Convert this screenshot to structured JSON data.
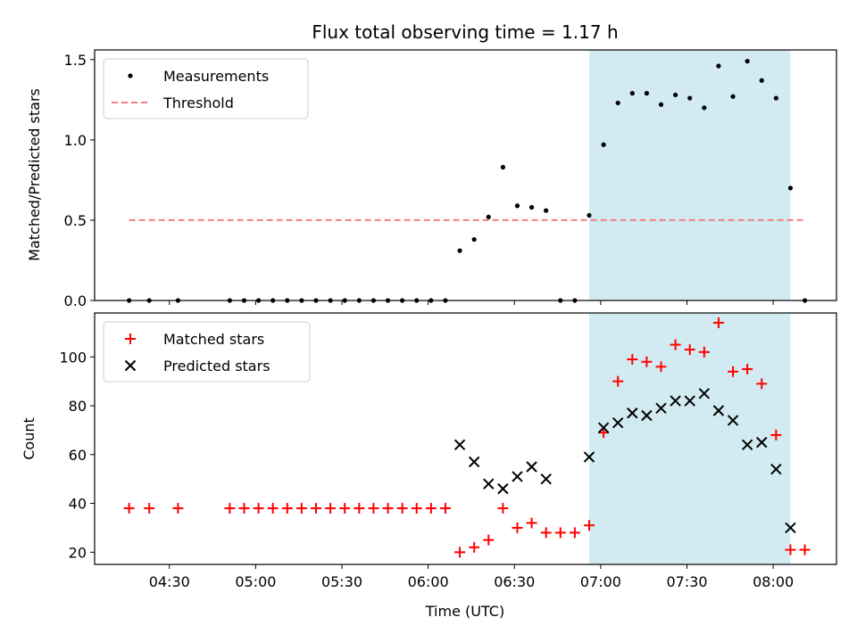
{
  "chart_data": {
    "type": "scatter",
    "title": "Flux total observing time = 1.17 h",
    "xlabel": "Time (UTC)",
    "x_ticks": [
      "04:30",
      "05:00",
      "05:30",
      "06:00",
      "06:30",
      "07:00",
      "07:30",
      "08:00"
    ],
    "highlight_span": {
      "from": "06:56",
      "to": "08:06",
      "color": "#add8e6"
    },
    "panels": [
      {
        "ylabel": "Matched/Predicted stars",
        "ylim": [
          0,
          1.56
        ],
        "yticks": [
          "0.0",
          "0.5",
          "1.0",
          "1.5"
        ],
        "legend_position": "upper-left",
        "series": [
          {
            "name": "Measurements",
            "marker": "dot",
            "color": "#000000",
            "x": [
              "04:16",
              "04:23",
              "04:33",
              "04:51",
              "04:56",
              "05:01",
              "05:06",
              "05:11",
              "05:16",
              "05:21",
              "05:26",
              "05:31",
              "05:36",
              "05:41",
              "05:46",
              "05:51",
              "05:56",
              "06:01",
              "06:06",
              "06:11",
              "06:16",
              "06:21",
              "06:26",
              "06:31",
              "06:36",
              "06:41",
              "06:46",
              "06:51",
              "06:56",
              "07:01",
              "07:06",
              "07:11",
              "07:16",
              "07:21",
              "07:26",
              "07:31",
              "07:36",
              "07:41",
              "07:46",
              "07:51",
              "07:56",
              "08:01",
              "08:06",
              "08:11"
            ],
            "y": [
              0,
              0,
              0,
              0,
              0,
              0,
              0,
              0,
              0,
              0,
              0,
              0,
              0,
              0,
              0,
              0,
              0,
              0,
              0,
              0.31,
              0.38,
              0.52,
              0.83,
              0.59,
              0.58,
              0.56,
              0,
              0,
              0.53,
              0.97,
              1.23,
              1.29,
              1.29,
              1.22,
              1.28,
              1.26,
              1.2,
              1.46,
              1.27,
              1.49,
              1.37,
              1.26,
              0.7,
              0
            ]
          },
          {
            "name": "Threshold",
            "marker": "dashed-line",
            "color": "#f08080",
            "x": [
              "04:16",
              "08:11"
            ],
            "y": [
              0.5,
              0.5
            ]
          }
        ]
      },
      {
        "ylabel": "Count",
        "ylim": [
          15,
          118
        ],
        "yticks": [
          "20",
          "40",
          "60",
          "80",
          "100"
        ],
        "legend_position": "upper-left",
        "series": [
          {
            "name": "Matched stars",
            "marker": "plus",
            "color": "#ff0000",
            "x": [
              "04:16",
              "04:23",
              "04:33",
              "04:51",
              "04:56",
              "05:01",
              "05:06",
              "05:11",
              "05:16",
              "05:21",
              "05:26",
              "05:31",
              "05:36",
              "05:41",
              "05:46",
              "05:51",
              "05:56",
              "06:01",
              "06:06",
              "06:11",
              "06:16",
              "06:21",
              "06:26",
              "06:31",
              "06:36",
              "06:41",
              "06:46",
              "06:51",
              "06:56",
              "07:01",
              "07:06",
              "07:11",
              "07:16",
              "07:21",
              "07:26",
              "07:31",
              "07:36",
              "07:41",
              "07:46",
              "07:51",
              "07:56",
              "08:01",
              "08:06",
              "08:11"
            ],
            "y": [
              38,
              38,
              38,
              38,
              38,
              38,
              38,
              38,
              38,
              38,
              38,
              38,
              38,
              38,
              38,
              38,
              38,
              38,
              38,
              20,
              22,
              25,
              38,
              30,
              32,
              28,
              28,
              28,
              31,
              69,
              90,
              99,
              98,
              96,
              105,
              103,
              102,
              114,
              94,
              95,
              89,
              68,
              21,
              21
            ]
          },
          {
            "name": "Predicted stars",
            "marker": "x",
            "color": "#000000",
            "x": [
              "06:11",
              "06:16",
              "06:21",
              "06:26",
              "06:31",
              "06:36",
              "06:41",
              "06:56",
              "07:01",
              "07:06",
              "07:11",
              "07:16",
              "07:21",
              "07:26",
              "07:31",
              "07:36",
              "07:41",
              "07:46",
              "07:51",
              "07:56",
              "08:01",
              "08:06"
            ],
            "y": [
              64,
              57,
              48,
              46,
              51,
              55,
              50,
              59,
              71,
              73,
              77,
              76,
              79,
              82,
              82,
              85,
              78,
              74,
              64,
              65,
              54,
              30
            ]
          }
        ]
      }
    ]
  }
}
